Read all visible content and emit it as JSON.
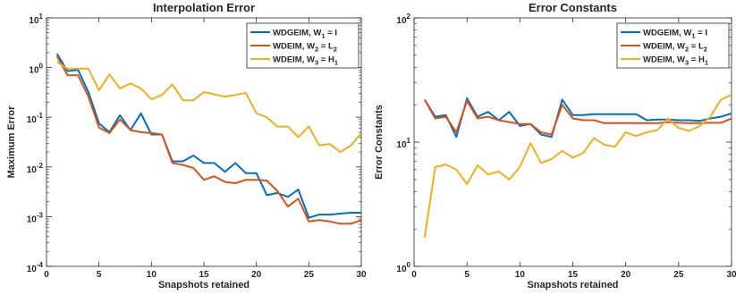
{
  "chart_data": [
    {
      "type": "line",
      "title": "Interpolation Error",
      "xlabel": "Snapshots retained",
      "ylabel": "Maximum Error",
      "yscale": "log",
      "xlim": [
        0,
        30
      ],
      "ylim": [
        0.0001,
        10
      ],
      "xticks": [
        "0",
        "5",
        "10",
        "15",
        "20",
        "25",
        "30"
      ],
      "yticks": [
        {
          "base": "10",
          "exp": "-4"
        },
        {
          "base": "10",
          "exp": "-3"
        },
        {
          "base": "10",
          "exp": "-2"
        },
        {
          "base": "10",
          "exp": "-1"
        },
        {
          "base": "10",
          "exp": "0"
        },
        {
          "base": "10",
          "exp": "1"
        }
      ],
      "grid": false,
      "legend_position": "top-right",
      "x": [
        1,
        2,
        3,
        4,
        5,
        6,
        7,
        8,
        9,
        10,
        11,
        12,
        13,
        14,
        15,
        16,
        17,
        18,
        19,
        20,
        21,
        22,
        23,
        24,
        25,
        26,
        27,
        28,
        29,
        30
      ],
      "series": [
        {
          "name_parts": [
            "WDGEIM, W",
            "1",
            " = I"
          ],
          "color": "#0072BD",
          "values": [
            1.9,
            0.85,
            0.9,
            0.32,
            0.075,
            0.05,
            0.11,
            0.055,
            0.12,
            0.045,
            0.045,
            0.013,
            0.013,
            0.017,
            0.012,
            0.012,
            0.008,
            0.012,
            0.0075,
            0.0075,
            0.0027,
            0.003,
            0.0025,
            0.0035,
            0.00095,
            0.0011,
            0.0011,
            0.00115,
            0.0012,
            0.0012
          ]
        },
        {
          "name_parts": [
            "WDEIM, W",
            "2",
            " = L",
            "2"
          ],
          "color": "#D95319",
          "values": [
            1.7,
            0.7,
            0.7,
            0.26,
            0.062,
            0.048,
            0.09,
            0.055,
            0.05,
            0.048,
            0.045,
            0.012,
            0.011,
            0.0095,
            0.0055,
            0.0065,
            0.005,
            0.0047,
            0.0055,
            0.0055,
            0.0053,
            0.0033,
            0.0016,
            0.0023,
            0.0008,
            0.00085,
            0.0008,
            0.00072,
            0.00072,
            0.00085
          ]
        },
        {
          "name_parts": [
            "WDEIM, W",
            "3",
            " = H",
            "1"
          ],
          "color": "#EDB120",
          "values": [
            1.3,
            0.95,
            0.95,
            0.95,
            0.35,
            0.73,
            0.38,
            0.48,
            0.38,
            0.23,
            0.28,
            0.46,
            0.22,
            0.22,
            0.32,
            0.29,
            0.26,
            0.28,
            0.31,
            0.12,
            0.1,
            0.065,
            0.065,
            0.04,
            0.065,
            0.027,
            0.029,
            0.02,
            0.027,
            0.048
          ]
        }
      ]
    },
    {
      "type": "line",
      "title": "Error Constants",
      "xlabel": "Snapshots retained",
      "ylabel": "Error Constants",
      "yscale": "log",
      "xlim": [
        0,
        30
      ],
      "ylim": [
        1,
        100
      ],
      "xticks": [
        "0",
        "5",
        "10",
        "15",
        "20",
        "25",
        "30"
      ],
      "yticks": [
        {
          "base": "10",
          "exp": "0"
        },
        {
          "base": "10",
          "exp": "1"
        },
        {
          "base": "10",
          "exp": "2"
        }
      ],
      "grid": false,
      "legend_position": "top-right",
      "x": [
        1,
        2,
        3,
        4,
        5,
        6,
        7,
        8,
        9,
        10,
        11,
        12,
        13,
        14,
        15,
        16,
        17,
        18,
        19,
        20,
        21,
        22,
        23,
        24,
        25,
        26,
        27,
        28,
        29,
        30
      ],
      "series": [
        {
          "name_parts": [
            "WDGEIM, W",
            "1",
            " = I"
          ],
          "color": "#0072BD",
          "values": [
            22,
            16,
            16.5,
            11,
            22.5,
            16,
            17.5,
            15,
            17.5,
            13.5,
            14,
            11.5,
            11,
            22,
            16.5,
            16.5,
            16.8,
            16.8,
            16.8,
            16.8,
            16.8,
            15,
            15.2,
            15.2,
            15,
            15,
            14.8,
            15.5,
            16,
            17
          ]
        },
        {
          "name_parts": [
            "WDEIM, W",
            "2",
            " = L",
            "2"
          ],
          "color": "#D95319",
          "values": [
            22,
            15.5,
            16,
            12,
            21.5,
            15.5,
            16,
            15,
            14.5,
            14,
            14,
            12,
            11.5,
            20,
            15.5,
            15,
            15,
            14.2,
            14.2,
            14.2,
            14.2,
            14.2,
            14.2,
            14.5,
            14.3,
            14.2,
            14.2,
            14.3,
            14.3,
            15.5
          ]
        },
        {
          "name_parts": [
            "WDEIM, W",
            "3",
            " = H",
            "1"
          ],
          "color": "#EDB120",
          "values": [
            1.7,
            6.3,
            6.6,
            6,
            4.6,
            6.5,
            5.5,
            5.8,
            5,
            6.3,
            9.8,
            6.8,
            7.3,
            8.5,
            7.5,
            8.2,
            10.8,
            9.5,
            9.2,
            12,
            11.2,
            12,
            12.5,
            15.5,
            13,
            12.3,
            13.5,
            16,
            22,
            24
          ]
        }
      ]
    }
  ]
}
